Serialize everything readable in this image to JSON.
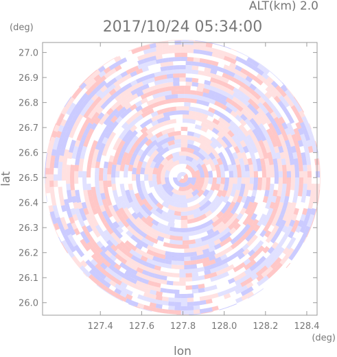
{
  "chart_data": {
    "type": "radar-ppi",
    "title": "2017/10/24 05:34:00",
    "subtitle": "ALT(km) 2.0",
    "x_label": "lon",
    "y_label": "lat",
    "x_unit": "(deg)",
    "y_unit": "(deg)",
    "xlim": [
      127.12,
      128.45
    ],
    "ylim": [
      25.95,
      27.04
    ],
    "xticks": [
      127.4,
      127.6,
      127.8,
      {
        "value": 128,
        "label": "128.0"
      },
      128.2,
      128.4
    ],
    "yticks": [
      {
        "value": 26,
        "label": "26.0"
      },
      26.1,
      26.2,
      26.3,
      26.4,
      26.5,
      26.6,
      26.7,
      26.8,
      26.9,
      {
        "value": 27,
        "label": "27.0"
      }
    ],
    "grid": false
  }
}
